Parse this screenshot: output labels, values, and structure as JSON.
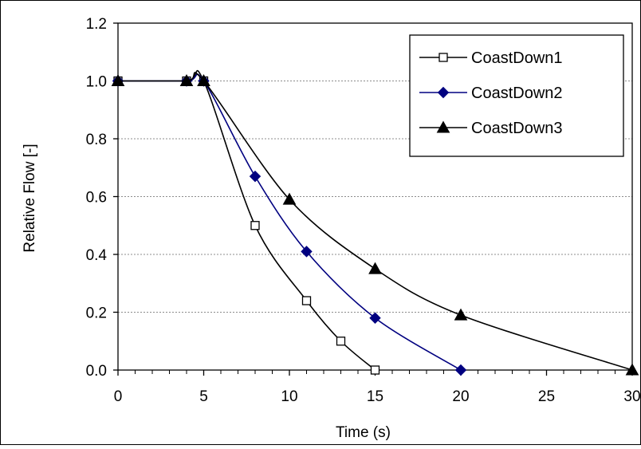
{
  "chart_data": {
    "type": "line",
    "xlabel": "Time (s)",
    "ylabel": "Relative Flow [-]",
    "xlim": [
      0,
      30
    ],
    "ylim": [
      0.0,
      1.2
    ],
    "x_ticks": [
      "0",
      "5",
      "10",
      "15",
      "20",
      "25",
      "30"
    ],
    "y_ticks": [
      "0.0",
      "0.2",
      "0.4",
      "0.6",
      "0.8",
      "1.0",
      "1.2"
    ],
    "grid": "horizontal",
    "legend_position": "top-right",
    "series": [
      {
        "name": "CoastDown1",
        "color": "#000000",
        "marker": "open-square",
        "x": [
          0,
          4,
          5,
          8,
          11,
          13,
          15
        ],
        "y": [
          1.0,
          1.0,
          1.0,
          0.5,
          0.24,
          0.1,
          0.0
        ]
      },
      {
        "name": "CoastDown2",
        "color": "#000080",
        "marker": "filled-diamond",
        "x": [
          0,
          4,
          5,
          8,
          11,
          15,
          20
        ],
        "y": [
          1.0,
          1.0,
          1.0,
          0.67,
          0.41,
          0.18,
          0.0
        ]
      },
      {
        "name": "CoastDown3",
        "color": "#000000",
        "marker": "filled-triangle",
        "x": [
          0,
          4,
          5,
          10,
          15,
          20,
          30
        ],
        "y": [
          1.0,
          1.0,
          1.0,
          0.59,
          0.35,
          0.19,
          0.0
        ]
      }
    ]
  }
}
